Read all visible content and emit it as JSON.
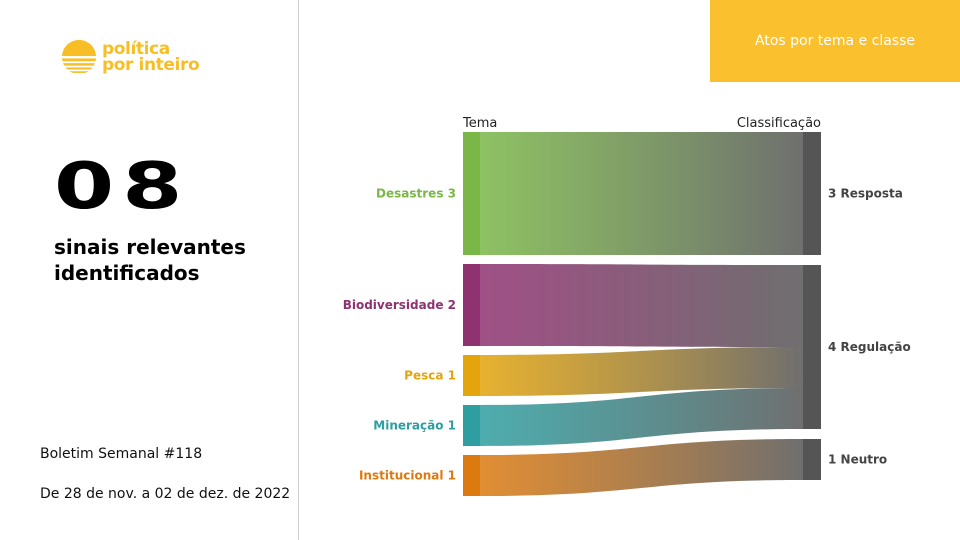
{
  "logo": {
    "line1": "política",
    "line2": "por inteiro"
  },
  "summary": {
    "number": "08",
    "label": "sinais relevantes identificados",
    "bulletin": "Boletim Semanal #118",
    "period": "De 28 de nov. a 02 de dez. de 2022"
  },
  "header_tab": "Atos por tema e classe",
  "chart_data": {
    "type": "sankey",
    "left_axis_label": "Tema",
    "right_axis_label": "Classificação",
    "sources": [
      {
        "name": "Desastres",
        "value": 3,
        "label": "Desastres 3",
        "color": "#7ab648"
      },
      {
        "name": "Biodiversidade",
        "value": 2,
        "label": "Biodiversidade 2",
        "color": "#8e3270"
      },
      {
        "name": "Pesca",
        "value": 1,
        "label": "Pesca 1",
        "color": "#e3a40c"
      },
      {
        "name": "Mineração",
        "value": 1,
        "label": "Mineração 1",
        "color": "#2f9ea0"
      },
      {
        "name": "Institucional",
        "value": 1,
        "label": "Institucional 1",
        "color": "#dc7a10"
      }
    ],
    "targets": [
      {
        "name": "Resposta",
        "value": 3,
        "label": "3 Resposta"
      },
      {
        "name": "Regulação",
        "value": 4,
        "label": "4 Regulação"
      },
      {
        "name": "Neutro",
        "value": 1,
        "label": "1 Neutro"
      }
    ],
    "links": [
      {
        "source": "Desastres",
        "target": "Resposta",
        "value": 3
      },
      {
        "source": "Biodiversidade",
        "target": "Regulação",
        "value": 2
      },
      {
        "source": "Pesca",
        "target": "Regulação",
        "value": 1
      },
      {
        "source": "Mineração",
        "target": "Regulação",
        "value": 1
      },
      {
        "source": "Institucional",
        "target": "Neutro",
        "value": 1
      }
    ],
    "target_color": "#555555"
  }
}
